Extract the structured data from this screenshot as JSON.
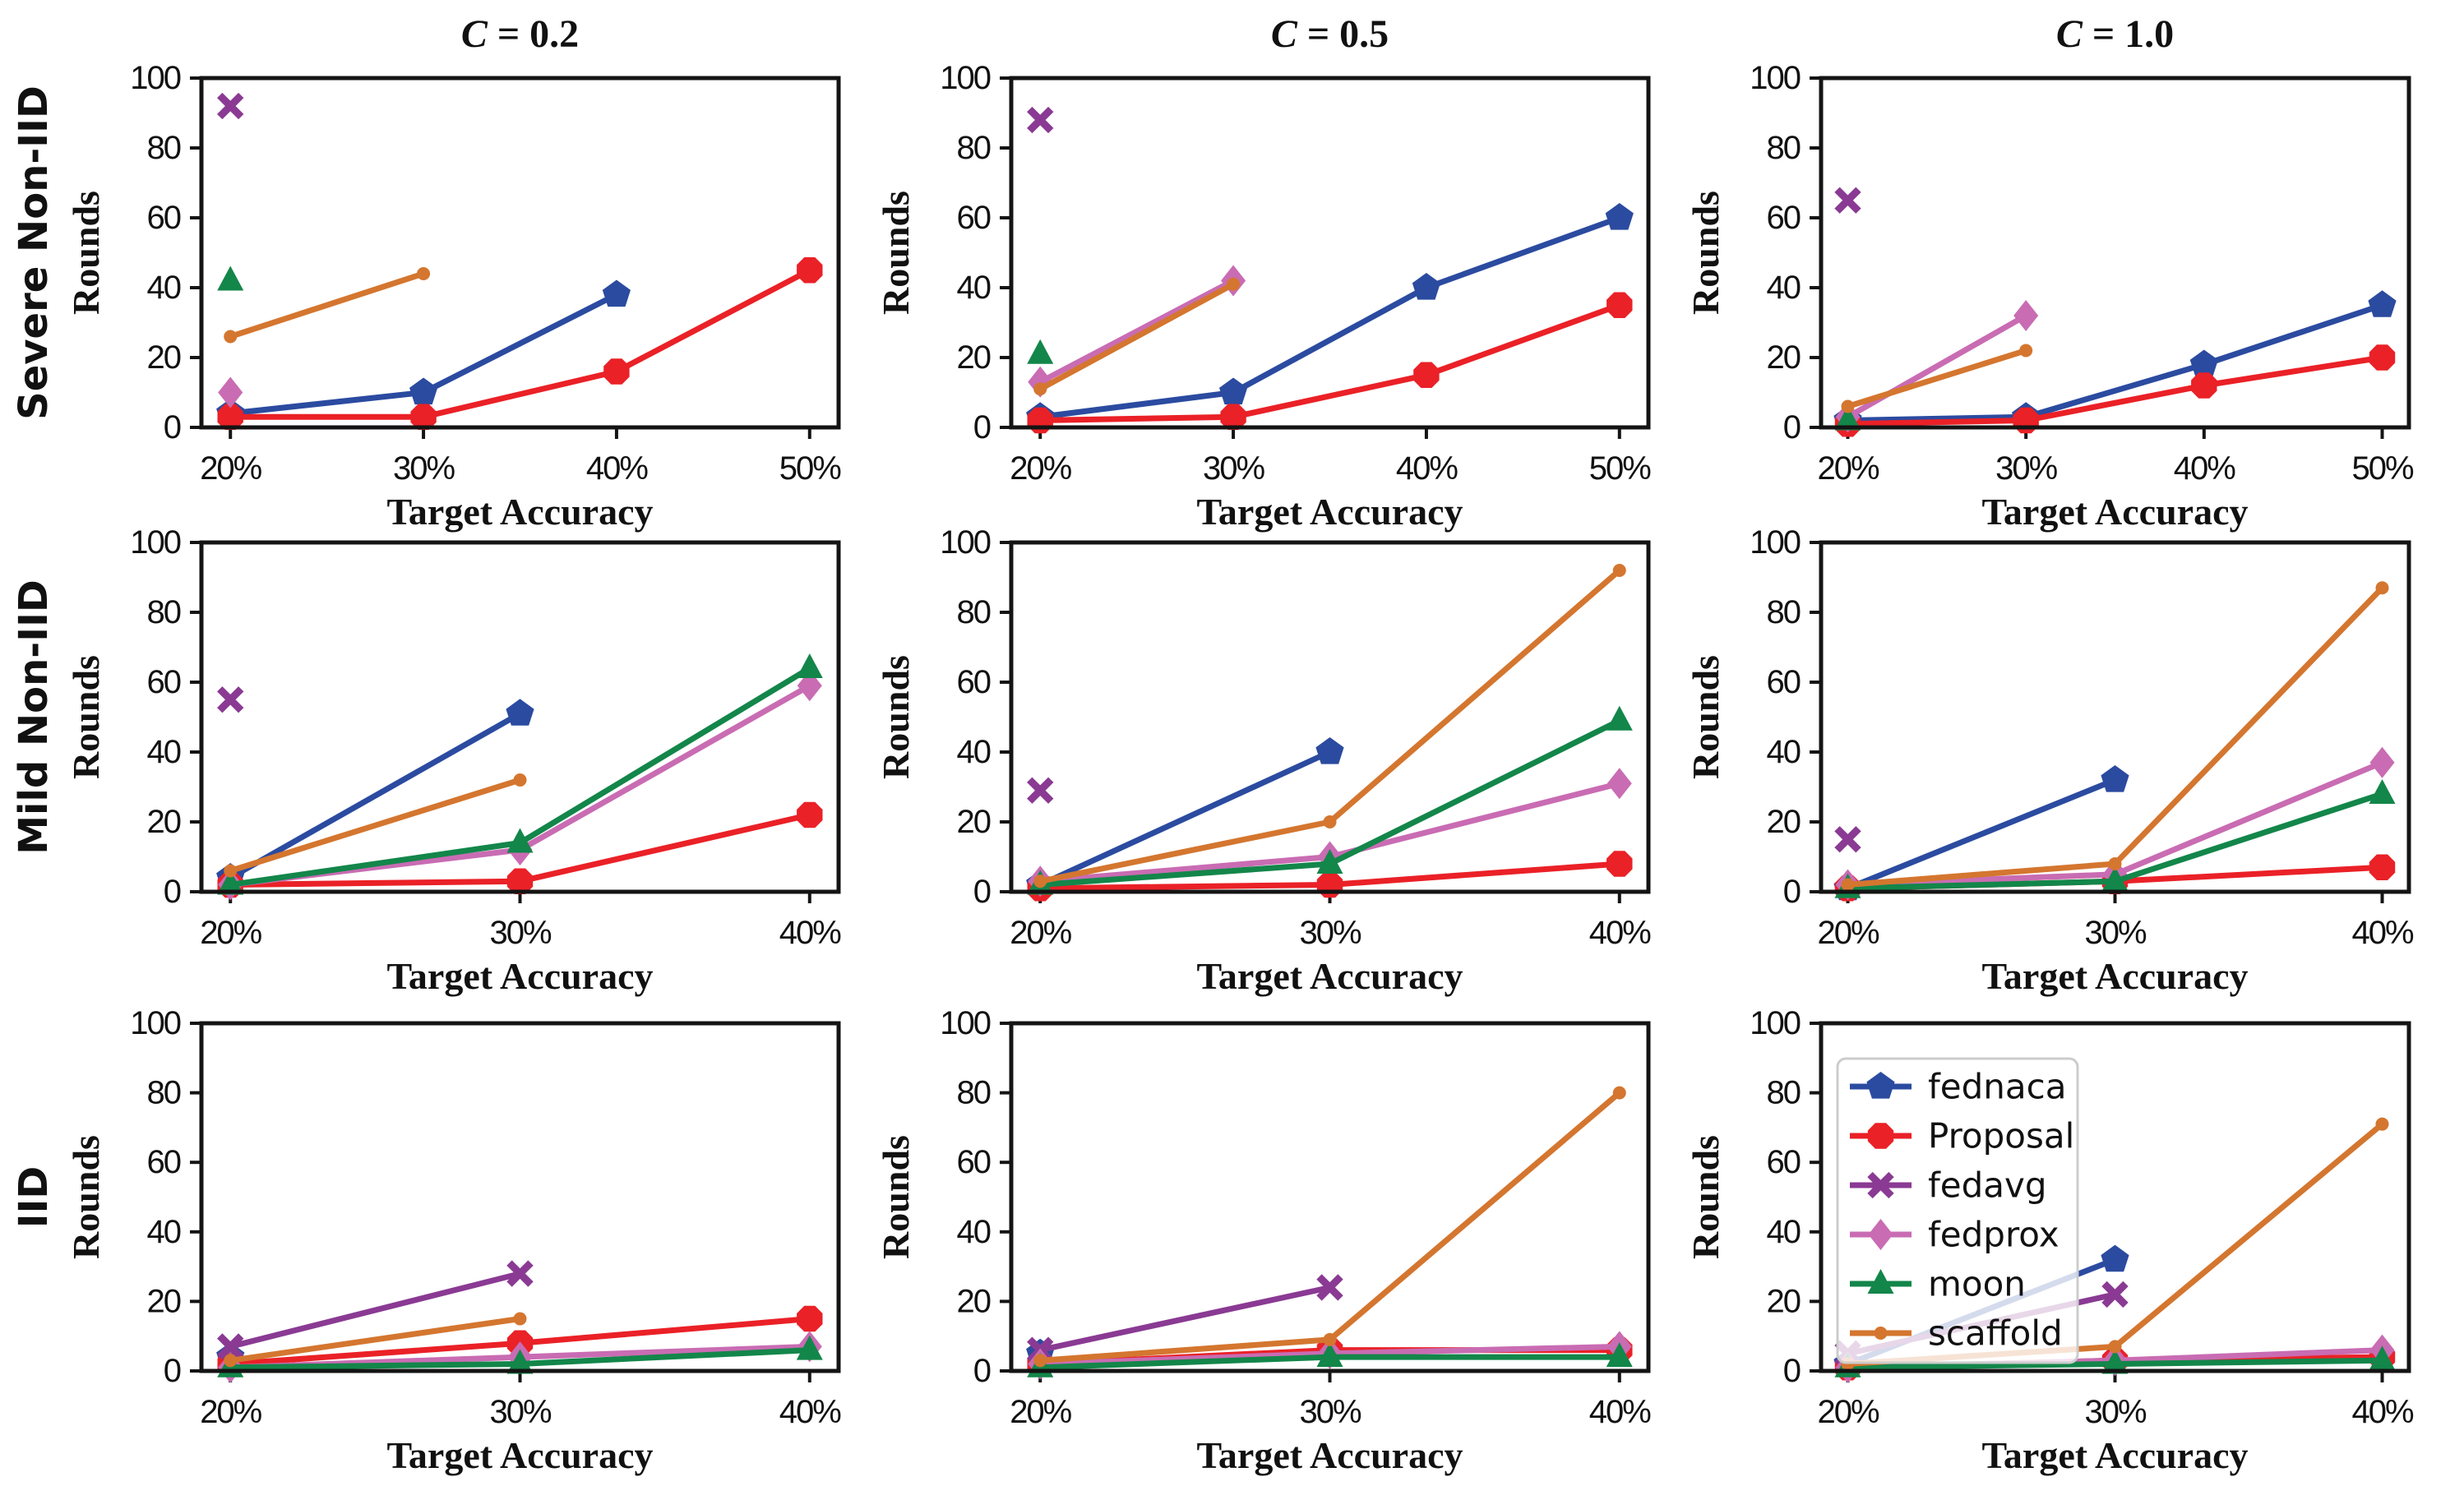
{
  "figure": {
    "background": "#ffffff",
    "axis_color": "#141414",
    "text_color": "#111111",
    "xlabel": "Target Accuracy",
    "ylabel": "Rounds",
    "col_titles": [
      "C = 0.2",
      "C = 0.5",
      "C = 1.0"
    ],
    "row_labels": [
      "Severe Non-IID",
      "Mild Non-IID",
      "IID"
    ],
    "ylim": [
      0,
      100
    ],
    "yticks": [
      "0",
      "20",
      "40",
      "60",
      "80",
      "100"
    ],
    "grid": "off"
  },
  "legend": {
    "location": "upper-left-of-bottom-right-subplot",
    "border_color": "#cccccc",
    "fill": "rgba(255,255,255,0.8)",
    "entries": [
      "fednaca",
      "Proposal",
      "fedavg",
      "fedprox",
      "moon",
      "scaffold"
    ]
  },
  "series_style": {
    "fednaca": {
      "color": "#2b4ba0",
      "marker": "pentagon"
    },
    "Proposal": {
      "color": "#ea2127",
      "marker": "octagon"
    },
    "fedavg": {
      "color": "#8a3a93",
      "marker": "x"
    },
    "fedprox": {
      "color": "#c96cb3",
      "marker": "diamond"
    },
    "moon": {
      "color": "#13864a",
      "marker": "triangle-up"
    },
    "scaffold": {
      "color": "#d4762f",
      "marker": "dot"
    }
  },
  "chart_data": [
    {
      "id": "severe-noniid-c0.2",
      "type": "line",
      "row": 0,
      "col": 0,
      "title": "C = 0.2",
      "row_label": "Severe Non-IID",
      "ylabel": "Rounds",
      "xlabel": "Target Accuracy",
      "ylim": [
        0,
        100
      ],
      "x_categories": [
        "20%",
        "30%",
        "40%",
        "50%"
      ],
      "legend": false,
      "series": [
        {
          "name": "fednaca",
          "values": [
            4,
            10,
            38,
            null
          ]
        },
        {
          "name": "Proposal",
          "values": [
            3,
            3,
            16,
            45
          ]
        },
        {
          "name": "fedavg",
          "values": [
            92,
            null,
            null,
            null
          ]
        },
        {
          "name": "fedprox",
          "values": [
            10,
            null,
            null,
            null
          ]
        },
        {
          "name": "moon",
          "values": [
            42,
            null,
            null,
            null
          ]
        },
        {
          "name": "scaffold",
          "values": [
            26,
            44,
            null,
            null
          ]
        }
      ]
    },
    {
      "id": "severe-noniid-c0.5",
      "type": "line",
      "row": 0,
      "col": 1,
      "title": "C = 0.5",
      "ylabel": "Rounds",
      "xlabel": "Target Accuracy",
      "ylim": [
        0,
        100
      ],
      "x_categories": [
        "20%",
        "30%",
        "40%",
        "50%"
      ],
      "legend": false,
      "series": [
        {
          "name": "fednaca",
          "values": [
            3,
            10,
            40,
            60
          ]
        },
        {
          "name": "Proposal",
          "values": [
            2,
            3,
            15,
            35
          ]
        },
        {
          "name": "fedavg",
          "values": [
            88,
            null,
            null,
            null
          ]
        },
        {
          "name": "fedprox",
          "values": [
            13,
            42,
            null,
            null
          ]
        },
        {
          "name": "moon",
          "values": [
            21,
            null,
            null,
            null
          ]
        },
        {
          "name": "scaffold",
          "values": [
            11,
            41,
            null,
            null
          ]
        }
      ]
    },
    {
      "id": "severe-noniid-c1.0",
      "type": "line",
      "row": 0,
      "col": 2,
      "title": "C = 1.0",
      "ylabel": "Rounds",
      "xlabel": "Target Accuracy",
      "ylim": [
        0,
        100
      ],
      "x_categories": [
        "20%",
        "30%",
        "40%",
        "50%"
      ],
      "legend": false,
      "series": [
        {
          "name": "fednaca",
          "values": [
            2,
            3,
            18,
            35
          ]
        },
        {
          "name": "Proposal",
          "values": [
            1,
            2,
            12,
            20
          ]
        },
        {
          "name": "fedavg",
          "values": [
            65,
            null,
            null,
            null
          ]
        },
        {
          "name": "fedprox",
          "values": [
            3,
            32,
            null,
            null
          ]
        },
        {
          "name": "moon",
          "values": [
            2,
            null,
            null,
            null
          ]
        },
        {
          "name": "scaffold",
          "values": [
            6,
            22,
            null,
            null
          ]
        }
      ]
    },
    {
      "id": "mild-noniid-c0.2",
      "type": "line",
      "row": 1,
      "col": 0,
      "row_label": "Mild Non-IID",
      "ylabel": "Rounds",
      "xlabel": "Target Accuracy",
      "ylim": [
        0,
        100
      ],
      "x_categories": [
        "20%",
        "30%",
        "40%"
      ],
      "legend": false,
      "series": [
        {
          "name": "fednaca",
          "values": [
            4,
            51,
            null
          ]
        },
        {
          "name": "Proposal",
          "values": [
            2,
            3,
            22
          ]
        },
        {
          "name": "fedavg",
          "values": [
            55,
            null,
            null
          ]
        },
        {
          "name": "fedprox",
          "values": [
            2,
            12,
            59
          ]
        },
        {
          "name": "moon",
          "values": [
            2,
            14,
            64
          ]
        },
        {
          "name": "scaffold",
          "values": [
            6,
            32,
            null
          ]
        }
      ]
    },
    {
      "id": "mild-noniid-c0.5",
      "type": "line",
      "row": 1,
      "col": 1,
      "ylabel": "Rounds",
      "xlabel": "Target Accuracy",
      "ylim": [
        0,
        100
      ],
      "x_categories": [
        "20%",
        "30%",
        "40%"
      ],
      "legend": false,
      "series": [
        {
          "name": "fednaca",
          "values": [
            2,
            40,
            null
          ]
        },
        {
          "name": "Proposal",
          "values": [
            1,
            2,
            8
          ]
        },
        {
          "name": "fedavg",
          "values": [
            29,
            null,
            null
          ]
        },
        {
          "name": "fedprox",
          "values": [
            3,
            10,
            31
          ]
        },
        {
          "name": "moon",
          "values": [
            2,
            8,
            49
          ]
        },
        {
          "name": "scaffold",
          "values": [
            3,
            20,
            92
          ]
        }
      ]
    },
    {
      "id": "mild-noniid-c1.0",
      "type": "line",
      "row": 1,
      "col": 2,
      "ylabel": "Rounds",
      "xlabel": "Target Accuracy",
      "ylim": [
        0,
        100
      ],
      "x_categories": [
        "20%",
        "30%",
        "40%"
      ],
      "legend": false,
      "series": [
        {
          "name": "fednaca",
          "values": [
            1,
            32,
            null
          ]
        },
        {
          "name": "Proposal",
          "values": [
            1,
            3,
            7
          ]
        },
        {
          "name": "fedavg",
          "values": [
            15,
            null,
            null
          ]
        },
        {
          "name": "fedprox",
          "values": [
            2,
            5,
            37
          ]
        },
        {
          "name": "moon",
          "values": [
            1,
            3,
            28
          ]
        },
        {
          "name": "scaffold",
          "values": [
            2,
            8,
            87
          ]
        }
      ]
    },
    {
      "id": "iid-c0.2",
      "type": "line",
      "row": 2,
      "col": 0,
      "row_label": "IID",
      "ylabel": "Rounds",
      "xlabel": "Target Accuracy",
      "ylim": [
        0,
        100
      ],
      "x_categories": [
        "20%",
        "30%",
        "40%"
      ],
      "legend": false,
      "series": [
        {
          "name": "fednaca",
          "values": [
            4,
            null,
            null
          ]
        },
        {
          "name": "Proposal",
          "values": [
            2,
            8,
            15
          ]
        },
        {
          "name": "fedavg",
          "values": [
            7,
            28,
            null
          ]
        },
        {
          "name": "fedprox",
          "values": [
            1,
            4,
            7
          ]
        },
        {
          "name": "moon",
          "values": [
            1,
            2,
            6
          ]
        },
        {
          "name": "scaffold",
          "values": [
            3,
            15,
            null
          ]
        }
      ]
    },
    {
      "id": "iid-c0.5",
      "type": "line",
      "row": 2,
      "col": 1,
      "ylabel": "Rounds",
      "xlabel": "Target Accuracy",
      "ylim": [
        0,
        100
      ],
      "x_categories": [
        "20%",
        "30%",
        "40%"
      ],
      "legend": false,
      "series": [
        {
          "name": "fednaca",
          "values": [
            5,
            null,
            null
          ]
        },
        {
          "name": "Proposal",
          "values": [
            2,
            6,
            6
          ]
        },
        {
          "name": "fedavg",
          "values": [
            6,
            24,
            null
          ]
        },
        {
          "name": "fedprox",
          "values": [
            2,
            5,
            7
          ]
        },
        {
          "name": "moon",
          "values": [
            1,
            4,
            4
          ]
        },
        {
          "name": "scaffold",
          "values": [
            3,
            9,
            80
          ]
        }
      ]
    },
    {
      "id": "iid-c1.0",
      "type": "line",
      "row": 2,
      "col": 2,
      "ylabel": "Rounds",
      "xlabel": "Target Accuracy",
      "ylim": [
        0,
        100
      ],
      "x_categories": [
        "20%",
        "30%",
        "40%"
      ],
      "legend": true,
      "series": [
        {
          "name": "fednaca",
          "values": [
            2,
            32,
            null
          ]
        },
        {
          "name": "Proposal",
          "values": [
            1,
            3,
            4
          ]
        },
        {
          "name": "fedavg",
          "values": [
            5,
            22,
            null
          ]
        },
        {
          "name": "fedprox",
          "values": [
            1,
            3,
            6
          ]
        },
        {
          "name": "moon",
          "values": [
            1,
            2,
            3
          ]
        },
        {
          "name": "scaffold",
          "values": [
            2,
            7,
            71
          ]
        }
      ]
    }
  ]
}
